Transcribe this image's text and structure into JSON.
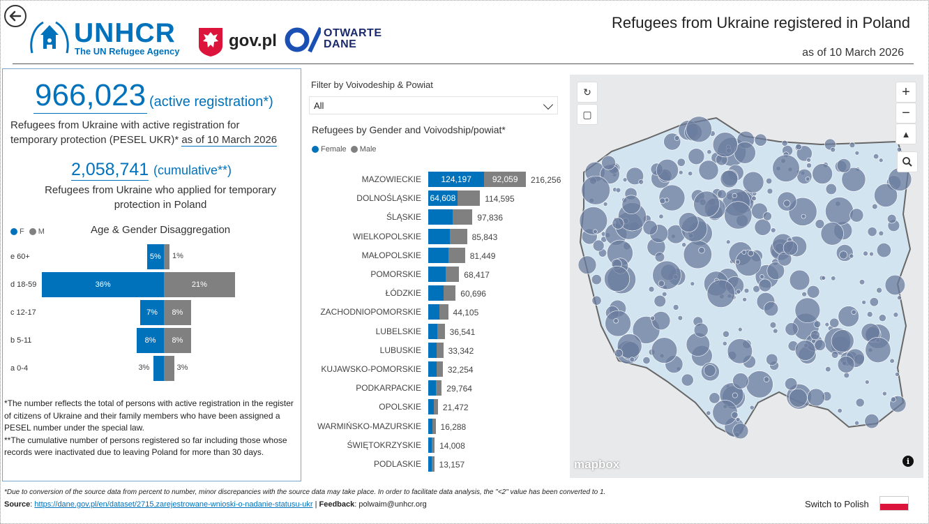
{
  "header": {
    "title": "Refugees from Ukraine registered in Poland",
    "date": "as of 10 March 2026",
    "unhcr_word": "UNHCR",
    "unhcr_sub": "The UN Refugee Agency",
    "govpl": "gov.pl",
    "otwarte_1": "OTWARTE",
    "otwarte_2": "DANE"
  },
  "kpi": {
    "active_value": "966,023",
    "active_note": "(active registration*)",
    "active_desc": "Refugees from Ukraine with active registration for temporary protection (PESEL UKR)*",
    "active_date": "as of 10 March 2026",
    "cum_value": "2,058,741",
    "cum_note": "(cumulative**)",
    "cum_desc": "Refugees from Ukraine who applied for temporary protection in Poland"
  },
  "age_gender": {
    "title": "Age & Gender Disaggregation",
    "legend_f": "F",
    "legend_m": "M",
    "rows": [
      {
        "label": "e 60+",
        "f": 5,
        "m": 1,
        "f_text": "5%",
        "m_text": "1%"
      },
      {
        "label": "d 18-59",
        "f": 36,
        "m": 21,
        "f_text": "36%",
        "m_text": "21%"
      },
      {
        "label": "c 12-17",
        "f": 7,
        "m": 8,
        "f_text": "7%",
        "m_text": "8%"
      },
      {
        "label": "b 5-11",
        "f": 8,
        "m": 8,
        "f_text": "8%",
        "m_text": "8%"
      },
      {
        "label": "a 0-4",
        "f": 3,
        "m": 3,
        "f_text": "3%",
        "m_text": "3%"
      }
    ]
  },
  "footnotes": {
    "n1": "*The number reflects the total of persons with active registration in the register of citizens of Ukraine and their family members who have been assigned a PESEL number under the special law.",
    "n2": "**The cumulative number of persons registered so far including those whose records were inactivated due to leaving Poland for more than 30 days."
  },
  "filter": {
    "label": "Filter by Voivodeship & Powiat",
    "value": "All"
  },
  "chart_data": {
    "type": "bar",
    "title": "Refugees by Gender and Voivodship/powiat*",
    "legend": [
      "Female",
      "Male"
    ],
    "categories": [
      "MAZOWIECKIE",
      "DOLNOŚLĄSKIE",
      "ŚLĄSKIE",
      "WIELKOPOLSKIE",
      "MAŁOPOLSKIE",
      "POMORSKIE",
      "ŁÓDZKIE",
      "ZACHODNIOPOMORSKIE",
      "LUBELSKIE",
      "LUBUSKIE",
      "KUJAWSKO-POMORSKIE",
      "PODKARPACKIE",
      "OPOLSKIE",
      "WARMIŃSKO-MAZURSKIE",
      "ŚWIĘTOKRZYSKIE",
      "PODLASKIE"
    ],
    "series": [
      {
        "name": "Female",
        "values": [
          124197,
          64608,
          54500,
          48000,
          45500,
          38500,
          34000,
          24500,
          20500,
          18500,
          18000,
          16500,
          12000,
          9000,
          7800,
          7300
        ]
      },
      {
        "name": "Male",
        "values": [
          92059,
          49987,
          43336,
          37843,
          35949,
          29917,
          26696,
          19605,
          16041,
          14842,
          14254,
          13264,
          9472,
          7288,
          6208,
          5857
        ]
      }
    ],
    "totals": [
      "216,256",
      "114,595",
      "97,836",
      "85,843",
      "81,449",
      "68,417",
      "60,696",
      "44,105",
      "36,541",
      "33,342",
      "32,254",
      "29,764",
      "21,472",
      "16,288",
      "14,008",
      "13,157"
    ],
    "labels_f": [
      "124,197",
      "64,608",
      "",
      "",
      "",
      "",
      "",
      "",
      "",
      "",
      "",
      "",
      "",
      "",
      "",
      ""
    ],
    "labels_m": [
      "92,059",
      "",
      "",
      "",
      "",
      "",
      "",
      "",
      "",
      "",
      "",
      "",
      "",
      "",
      "",
      ""
    ]
  },
  "map": {
    "attribution": "mapbox",
    "info": "i"
  },
  "footer": {
    "disclaimer": "*Due to conversion of the source data from percent to number, minor discrepancies with the source data may take place. In order to facilitate data analysis, the \"<2\" value has been converted to 1.",
    "source_label": "Source",
    "source_url": "https://dane.gov.pl/en/dataset/2715,zarejestrowane-wnioski-o-nadanie-statusu-ukr",
    "feedback_label": "Feedback",
    "feedback_email": "polwaim@unhcr.org",
    "switch_label": "Switch to Polish"
  },
  "colors": {
    "female": "#0072bc",
    "male": "#808080",
    "bubble": "#6b7c9e",
    "land": "#d3e4f1"
  }
}
